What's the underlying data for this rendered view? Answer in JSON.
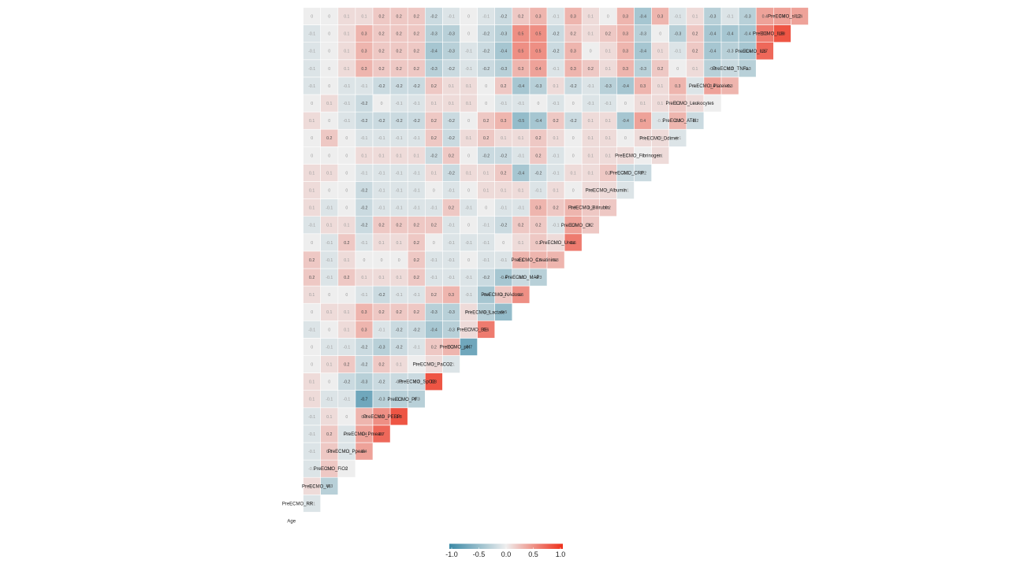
{
  "chart_data": {
    "type": "heatmap",
    "subtype": "lower-triangle correlation matrix (upper triangle not shown)",
    "title": "",
    "variables": [
      "Age",
      "PreECMO_RR",
      "PreECMO_VI",
      "PreECMO_FiO2",
      "PreECMO_Ppeak",
      "PreECMO_Pmean",
      "PreECMO_PEEP",
      "PreECMO_PF",
      "PreECMO_SpO2",
      "PreECMO_PaCO2",
      "PreECMO_pH",
      "PreECMO_BE",
      "PreECMO_Lactate",
      "PreECMO_NAdose",
      "PreECMO_MAP",
      "PreECMO_Creatinine",
      "PreECMO_Urea",
      "PreECMO_CK",
      "PreECMO_Bilirubin",
      "PreECMO_Albumin",
      "PreECMO_CRP",
      "PreECMO_Fibrinogen",
      "PreECMO_Ddimer",
      "PreECMO_ATIII",
      "PreECMO_Leukocytes",
      "PreECMO_Platelets",
      "PreECMO_TNFa",
      "PreECMO_IL6",
      "PreECMO_IL8",
      "PreECMO_sIL2"
    ],
    "matrix": [
      [],
      [
        -0.1
      ],
      [
        0.1,
        -0.3
      ],
      [
        -0.1,
        0.2,
        0
      ],
      [
        -0.1,
        0.2,
        -0.1,
        0.4
      ],
      [
        -0.1,
        0.2,
        -0.1,
        0.4,
        0.7
      ],
      [
        -0.1,
        0.1,
        0,
        0.3,
        0.5,
        0.8
      ],
      [
        0.1,
        -0.1,
        -0.1,
        -0.7,
        -0.3,
        -0.3,
        -0.3
      ],
      [
        0.1,
        0,
        -0.2,
        -0.3,
        -0.2,
        -0.2,
        -0.2,
        0.8
      ],
      [
        0,
        0.1,
        0.2,
        -0.2,
        0.2,
        0.1,
        0,
        0.1,
        -0.1
      ],
      [
        0,
        -0.1,
        -0.1,
        -0.2,
        -0.3,
        -0.2,
        -0.1,
        0.2,
        0.3,
        -0.7
      ],
      [
        -0.1,
        0,
        0.1,
        0.3,
        -0.1,
        -0.2,
        -0.2,
        -0.4,
        -0.3,
        0.1,
        0.6
      ],
      [
        0,
        0.1,
        0.1,
        0.3,
        0.2,
        0.2,
        0.2,
        -0.3,
        -0.3,
        0.1,
        -0.3,
        -0.5
      ],
      [
        0.1,
        0,
        0,
        -0.1,
        -0.2,
        -0.1,
        -0.1,
        0.2,
        0.3,
        -0.1,
        -0.4,
        0.2,
        0.5
      ],
      [
        0.2,
        -0.1,
        0.2,
        0.1,
        0.1,
        0.1,
        0.2,
        -0.1,
        -0.1,
        -0.1,
        -0.2,
        -0.4,
        -0.2,
        -0.3
      ],
      [
        0.2,
        -0.1,
        0.1,
        0,
        0,
        0,
        0.2,
        -0.1,
        -0.1,
        0,
        -0.1,
        -0.1,
        0.3,
        0.3,
        0.3
      ],
      [
        0,
        -0.1,
        0.2,
        -0.1,
        0.1,
        0.1,
        0.2,
        0,
        -0.1,
        -0.1,
        -0.1,
        0,
        0.1,
        0.2,
        0.1,
        0.6
      ],
      [
        -0.1,
        0.1,
        0.1,
        -0.2,
        0.2,
        0.2,
        0.2,
        0.2,
        -0.1,
        0,
        -0.1,
        -0.2,
        0.2,
        0.2,
        -0.1,
        0.4,
        0.2
      ],
      [
        0.1,
        -0.1,
        0,
        -0.2,
        -0.1,
        -0.1,
        -0.1,
        -0.1,
        0.2,
        -0.1,
        0,
        -0.1,
        -0.1,
        0.3,
        0.2,
        0.3,
        0.2,
        0.2
      ],
      [
        0.1,
        0,
        0,
        -0.2,
        -0.1,
        -0.1,
        -0.1,
        0,
        -0.1,
        0,
        0.1,
        0.1,
        0.1,
        -0.1,
        0.1,
        0,
        0.1,
        0.1,
        -0.1
      ],
      [
        0.1,
        0.1,
        0,
        -0.1,
        -0.1,
        -0.1,
        -0.1,
        0.1,
        -0.2,
        0.1,
        0.1,
        0.2,
        -0.4,
        -0.2,
        -0.1,
        0.1,
        0.1,
        0.2,
        -0.2,
        -0.2
      ],
      [
        0,
        0,
        0,
        0.1,
        0.1,
        0.1,
        0.1,
        -0.2,
        0.2,
        0,
        -0.2,
        -0.2,
        -0.1,
        0.2,
        -0.1,
        0,
        0.1,
        0.1,
        0.1,
        0,
        0.1
      ],
      [
        0,
        0.2,
        0,
        -0.1,
        -0.1,
        -0.1,
        -0.1,
        0.2,
        -0.2,
        0.1,
        0.2,
        0.1,
        0.1,
        0.2,
        0.1,
        0,
        0.1,
        0.1,
        0,
        0.1,
        0.1,
        -0.1
      ],
      [
        0.1,
        0,
        -0.1,
        -0.2,
        -0.2,
        -0.2,
        -0.2,
        0.2,
        -0.2,
        0,
        0.2,
        0.3,
        -0.5,
        -0.4,
        0.2,
        -0.2,
        0.1,
        0.1,
        -0.4,
        0.4,
        -0.1,
        0.3,
        -0.2
      ],
      [
        0,
        0.1,
        -0.1,
        -0.2,
        0,
        -0.1,
        -0.1,
        0.1,
        0.1,
        0.1,
        0,
        -0.1,
        -0.1,
        0,
        -0.1,
        0,
        -0.1,
        -0.1,
        0,
        0.1,
        0.1,
        0.2,
        0.1,
        0
      ],
      [
        -0.1,
        0,
        -0.1,
        -0.1,
        -0.2,
        -0.2,
        -0.2,
        0.2,
        0.1,
        0.1,
        0,
        0.2,
        -0.4,
        -0.3,
        0.1,
        -0.2,
        -0.1,
        -0.3,
        -0.4,
        0.3,
        0.1,
        0.3,
        -0.1,
        0.4,
        0.3
      ],
      [
        -0.1,
        0,
        0.1,
        0.3,
        0.2,
        0.2,
        0.2,
        -0.3,
        -0.2,
        -0.1,
        -0.2,
        -0.3,
        0.3,
        0.4,
        -0.1,
        0.3,
        0.2,
        0.1,
        0.3,
        -0.3,
        0.2,
        0,
        0.1,
        -0.3,
        -0.2,
        -0.3
      ],
      [
        -0.1,
        0,
        0.1,
        0.3,
        0.2,
        0.2,
        0.2,
        -0.4,
        -0.3,
        -0.1,
        -0.2,
        -0.4,
        0.5,
        0.5,
        -0.2,
        0.3,
        0,
        0.1,
        0.3,
        -0.4,
        0.1,
        -0.1,
        0.2,
        -0.4,
        -0.3,
        -0.4,
        0.7
      ],
      [
        -0.1,
        0,
        0.1,
        0.3,
        0.2,
        0.2,
        0.2,
        -0.3,
        -0.3,
        0,
        -0.2,
        -0.3,
        0.5,
        0.5,
        -0.2,
        0.2,
        0.1,
        0.2,
        0.3,
        -0.3,
        0,
        -0.3,
        0.2,
        -0.4,
        -0.4,
        -0.4,
        0.6,
        0.8
      ],
      [
        0,
        0,
        0.1,
        0.1,
        0.2,
        0.2,
        0.2,
        -0.2,
        -0.1,
        0,
        -0.1,
        -0.2,
        0.2,
        0.3,
        -0.1,
        0.3,
        0.1,
        0,
        0.3,
        -0.4,
        0.3,
        -0.1,
        0.1,
        -0.3,
        -0.1,
        -0.3,
        0.4,
        0.4,
        0.4
      ]
    ],
    "color_scale": {
      "min": -1.0,
      "mid": 0.0,
      "max": 1.0,
      "low_color": "#3a89a6",
      "mid_color": "#eeeeee",
      "high_color": "#ee2f1a"
    },
    "legend": {
      "position": "bottom",
      "ticks": [
        "-1.0",
        "-0.5",
        "0.0",
        "0.5",
        "1.0"
      ]
    }
  }
}
